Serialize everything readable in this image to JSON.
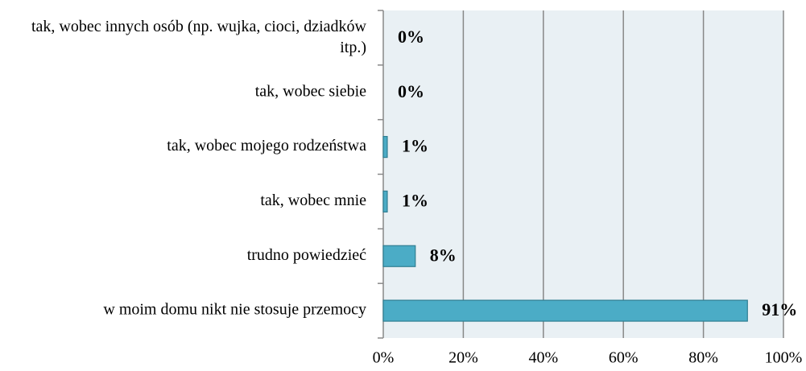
{
  "chart_data": {
    "type": "barh",
    "categories": [
      "tak, wobec innych osób (np. wujka, cioci, dziadków itp.)",
      "tak, wobec siebie",
      "tak, wobec mojego rodzeństwa",
      "tak, wobec mnie",
      "trudno powiedzieć",
      "w moim domu nikt nie stosuje przemocy"
    ],
    "values": [
      0,
      0,
      1,
      1,
      8,
      91
    ],
    "value_labels": [
      "0%",
      "0%",
      "1%",
      "1%",
      "8%",
      "91%"
    ],
    "color": "#4bacc6",
    "xlim": [
      0,
      100
    ],
    "xticks": [
      {
        "value": 0,
        "label": "0%"
      },
      {
        "value": 20,
        "label": "20%"
      },
      {
        "value": 40,
        "label": "40%"
      },
      {
        "value": 60,
        "label": "60%"
      },
      {
        "value": 80,
        "label": "80%"
      },
      {
        "value": 100,
        "label": "100%"
      }
    ],
    "grid": true
  }
}
